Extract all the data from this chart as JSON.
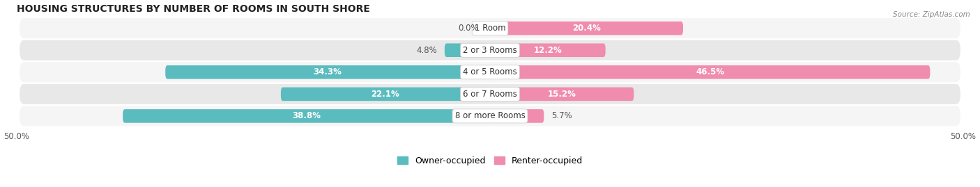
{
  "title": "HOUSING STRUCTURES BY NUMBER OF ROOMS IN SOUTH SHORE",
  "source": "Source: ZipAtlas.com",
  "categories": [
    "1 Room",
    "2 or 3 Rooms",
    "4 or 5 Rooms",
    "6 or 7 Rooms",
    "8 or more Rooms"
  ],
  "owner_values": [
    0.0,
    4.8,
    34.3,
    22.1,
    38.8
  ],
  "renter_values": [
    20.4,
    12.2,
    46.5,
    15.2,
    5.7
  ],
  "owner_color": "#5bbcbf",
  "renter_color": "#f08cae",
  "row_bg_light": "#f5f5f5",
  "row_bg_dark": "#e8e8e8",
  "axis_limit": 50.0,
  "bar_height": 0.62,
  "label_fontsize": 8.5,
  "title_fontsize": 10,
  "legend_fontsize": 9,
  "value_color_inside": "#ffffff",
  "value_color_outside": "#555555"
}
